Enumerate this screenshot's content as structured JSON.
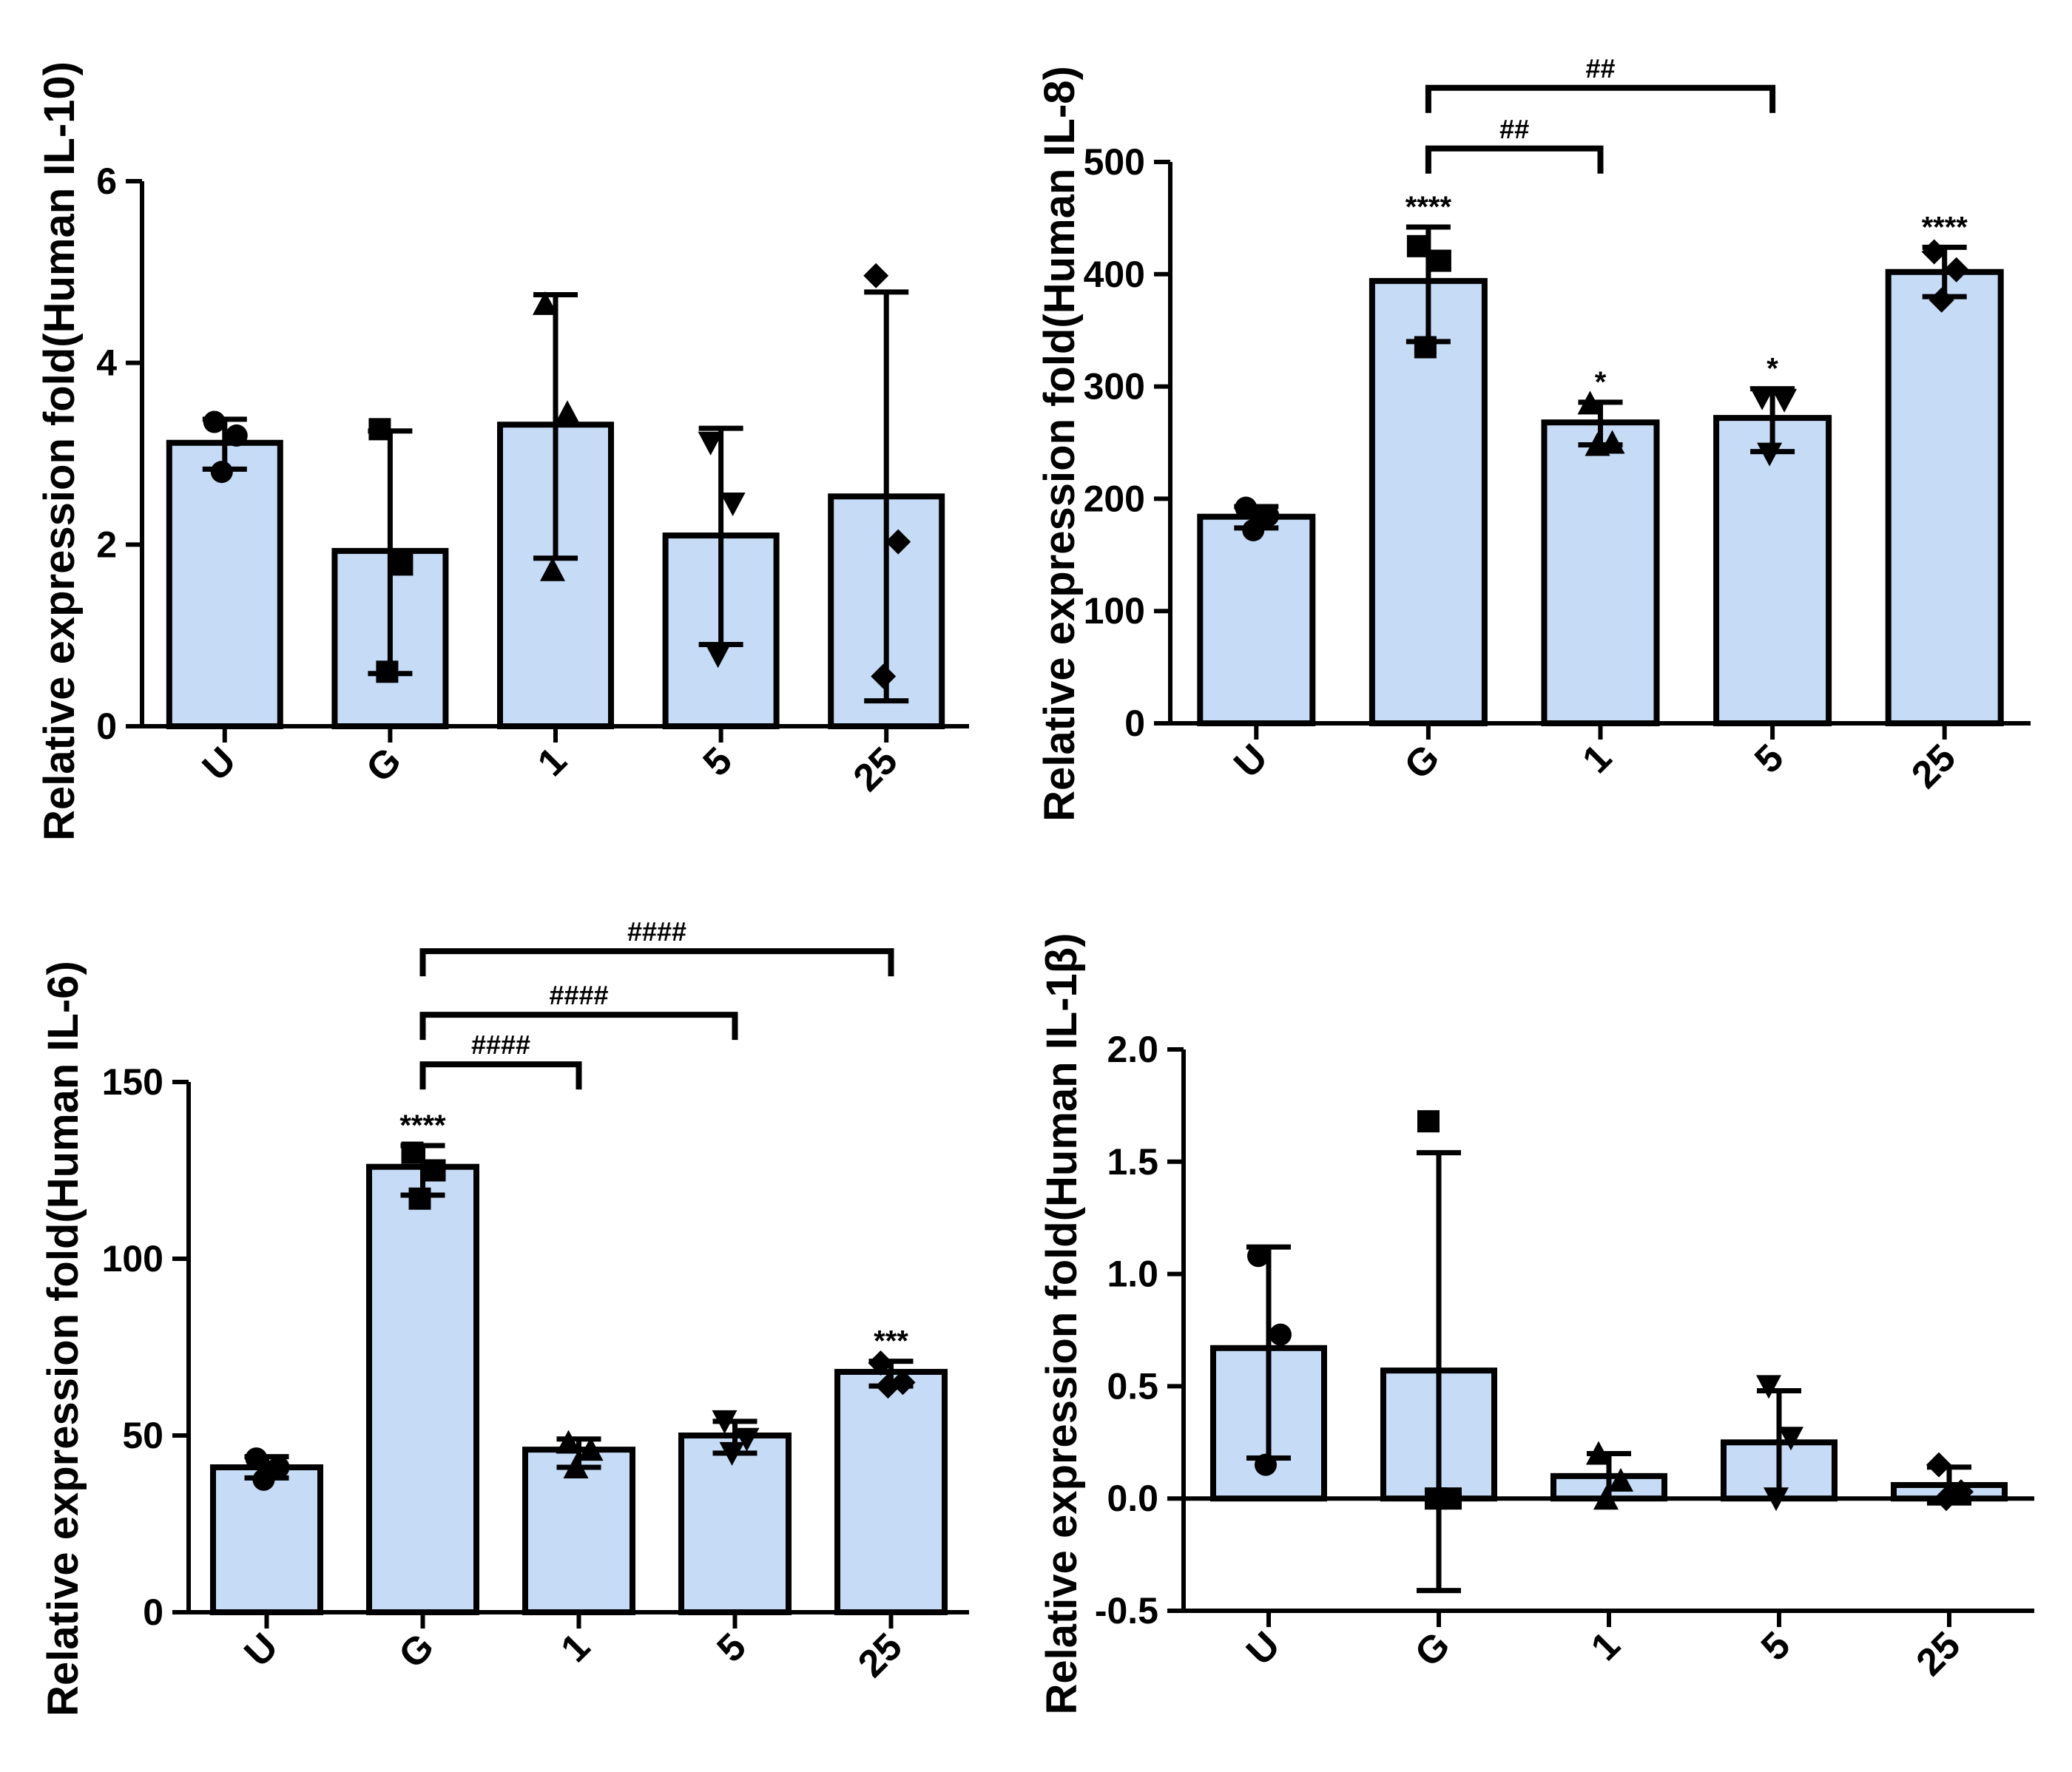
{
  "colors": {
    "bar_fill": "#c6dbf5",
    "stroke": "#000000",
    "background": "#ffffff"
  },
  "chart_data": [
    {
      "type": "bar",
      "panel": "top-left",
      "title": "",
      "xlabel": "",
      "ylabel": "Relative expression fold(Human IL-10)",
      "categories": [
        "U",
        "G",
        "1",
        "5",
        "25"
      ],
      "values": [
        3.12,
        1.93,
        3.32,
        2.1,
        2.53
      ],
      "errors": [
        [
          2.83,
          3.38
        ],
        [
          0.58,
          3.25
        ],
        [
          1.85,
          4.75
        ],
        [
          0.9,
          3.28
        ],
        [
          0.28,
          4.78
        ]
      ],
      "points": [
        [
          3.35,
          3.2,
          2.8
        ],
        [
          3.27,
          1.78,
          0.6
        ],
        [
          4.65,
          3.45,
          1.72
        ],
        [
          3.12,
          2.45,
          0.78
        ],
        [
          4.96,
          2.03,
          0.55
        ]
      ],
      "markers": [
        "circle",
        "square",
        "triangle-up",
        "triangle-down",
        "diamond"
      ],
      "ylim": [
        0,
        6
      ],
      "yticks": [
        0,
        2,
        4,
        6
      ],
      "ytick_labels": [
        "0",
        "2",
        "4",
        "6"
      ],
      "significance": [],
      "comparisons": []
    },
    {
      "type": "bar",
      "panel": "top-right",
      "title": "",
      "xlabel": "",
      "ylabel": "Relative expression fold(Human IL-8)",
      "categories": [
        "U",
        "G",
        "1",
        "5",
        "25"
      ],
      "values": [
        184,
        394,
        268,
        272,
        402
      ],
      "errors": [
        [
          174,
          193
        ],
        [
          340,
          442
        ],
        [
          248,
          286
        ],
        [
          242,
          298
        ],
        [
          380,
          424
        ]
      ],
      "points": [
        [
          192,
          185,
          172
        ],
        [
          425,
          412,
          335
        ],
        [
          285,
          250,
          248
        ],
        [
          290,
          288,
          240
        ],
        [
          420,
          404,
          377
        ]
      ],
      "markers": [
        "circle",
        "square",
        "triangle-up",
        "triangle-down",
        "diamond"
      ],
      "ylim": [
        0,
        500
      ],
      "yticks": [
        0,
        100,
        200,
        300,
        400,
        500
      ],
      "ytick_labels": [
        "0",
        "100",
        "200",
        "300",
        "400",
        "500"
      ],
      "significance": [
        "",
        "****",
        "*",
        "*",
        "****"
      ],
      "comparisons": [
        {
          "from": 1,
          "to": 2,
          "label": "##",
          "y": 512
        },
        {
          "from": 1,
          "to": 3,
          "label": "##",
          "y": 566
        }
      ]
    },
    {
      "type": "bar",
      "panel": "bottom-left",
      "title": "",
      "xlabel": "",
      "ylabel": "Relative expression fold(Human IL-6)",
      "categories": [
        "U",
        "G",
        "1",
        "5",
        "25"
      ],
      "values": [
        41,
        126,
        46,
        50,
        68
      ],
      "errors": [
        [
          38,
          44
        ],
        [
          118,
          132
        ],
        [
          41,
          49
        ],
        [
          45,
          54
        ],
        [
          64,
          71
        ]
      ],
      "points": [
        [
          43.5,
          41,
          37.5
        ],
        [
          130,
          125,
          117
        ],
        [
          48,
          46,
          41
        ],
        [
          54,
          49,
          45
        ],
        [
          70.5,
          65,
          64
        ]
      ],
      "markers": [
        "circle",
        "square",
        "triangle-up",
        "triangle-down",
        "diamond"
      ],
      "ylim": [
        0,
        150
      ],
      "yticks": [
        0,
        50,
        100,
        150
      ],
      "ytick_labels": [
        "0",
        "50",
        "100",
        "150"
      ],
      "significance": [
        "",
        "****",
        "",
        "",
        "***"
      ],
      "comparisons": [
        {
          "from": 1,
          "to": 2,
          "label": "####",
          "y": 155
        },
        {
          "from": 1,
          "to": 3,
          "label": "####",
          "y": 169
        },
        {
          "from": 1,
          "to": 4,
          "label": "####",
          "y": 187
        }
      ]
    },
    {
      "type": "bar",
      "panel": "bottom-right",
      "title": "",
      "xlabel": "",
      "ylabel": "Relative expression fold(Human IL-1β)",
      "categories": [
        "U",
        "G",
        "1",
        "5",
        "25"
      ],
      "values": [
        0.67,
        0.57,
        0.1,
        0.25,
        0.06
      ],
      "errors": [
        [
          0.18,
          1.12
        ],
        [
          -0.41,
          1.54
        ],
        [
          0.0,
          0.2
        ],
        [
          0.0,
          0.48
        ],
        [
          -0.02,
          0.14
        ]
      ],
      "points": [
        [
          1.08,
          0.73,
          0.15
        ],
        [
          1.68,
          0.0,
          0.0
        ],
        [
          0.2,
          0.08,
          0.0
        ],
        [
          0.5,
          0.27,
          0.0
        ],
        [
          0.15,
          0.03,
          0.0
        ]
      ],
      "markers": [
        "circle",
        "square",
        "triangle-up",
        "triangle-down",
        "diamond"
      ],
      "ylim": [
        -0.5,
        2.0
      ],
      "yticks": [
        -0.5,
        0.0,
        0.5,
        1.0,
        1.5,
        2.0
      ],
      "ytick_labels": [
        "-0.5",
        "0.0",
        "0.5",
        "1.0",
        "1.5",
        "2.0"
      ],
      "baseline": 0,
      "significance": [],
      "comparisons": []
    }
  ]
}
